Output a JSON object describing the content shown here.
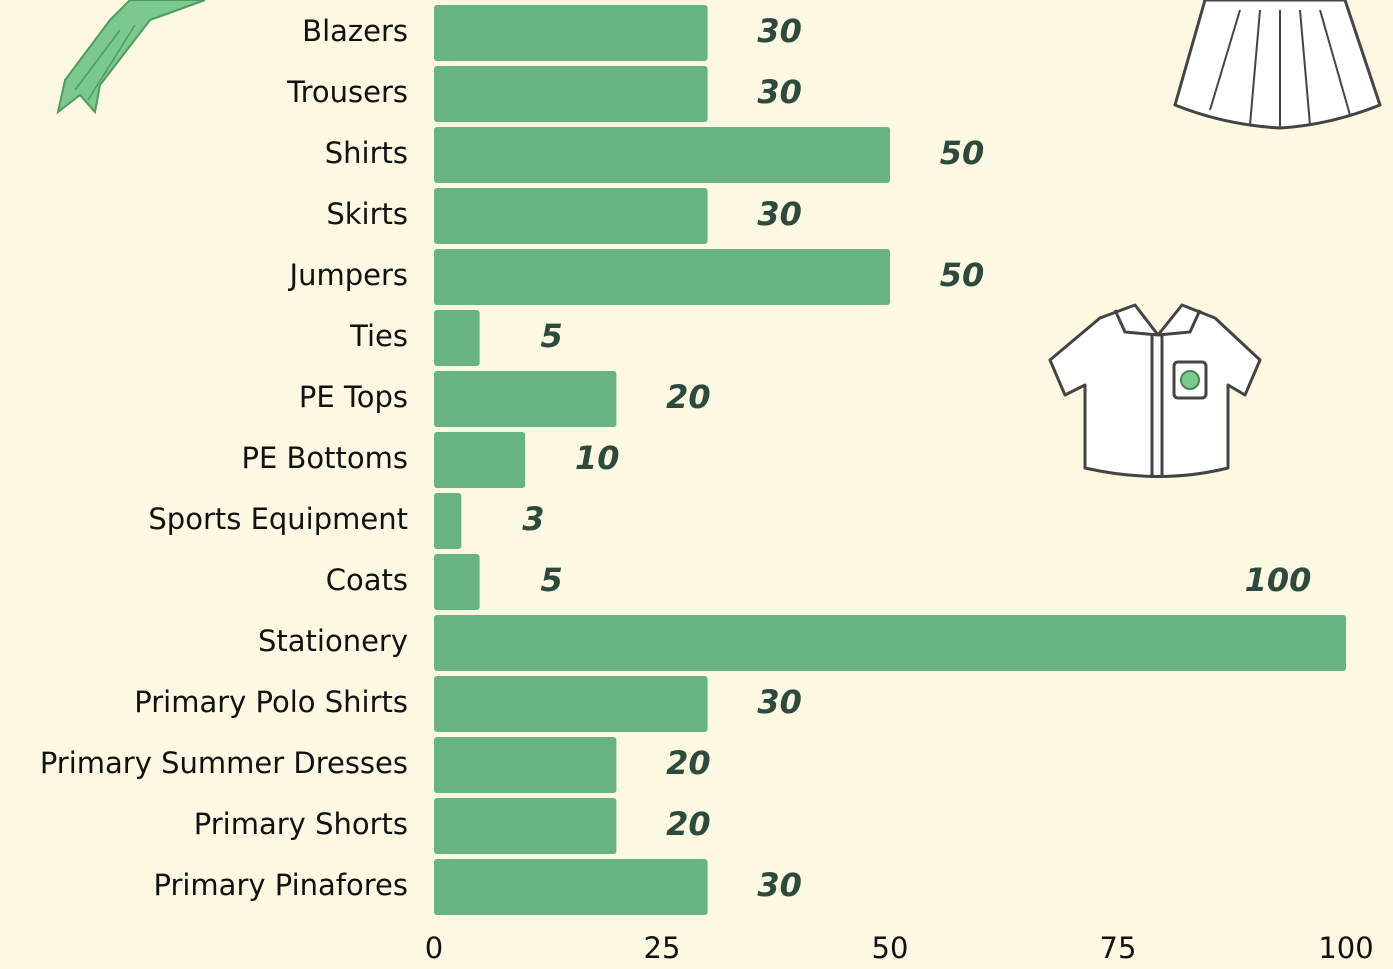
{
  "chart_data": {
    "type": "bar",
    "orientation": "horizontal",
    "categories": [
      "Blazers",
      "Trousers",
      "Shirts",
      "Skirts",
      "Jumpers",
      "Ties",
      "PE Tops",
      "PE Bottoms",
      "Sports Equipment",
      "Coats",
      "Stationery",
      "Primary Polo Shirts",
      "Primary Summer Dresses",
      "Primary Shorts",
      "Primary Pinafores"
    ],
    "values": [
      30,
      30,
      50,
      30,
      50,
      5,
      20,
      10,
      3,
      5,
      100,
      30,
      20,
      20,
      30
    ],
    "color": "#68b382",
    "xlim": [
      0,
      100
    ],
    "xticks": [
      0,
      25,
      50,
      75,
      100
    ],
    "grid": false
  }
}
